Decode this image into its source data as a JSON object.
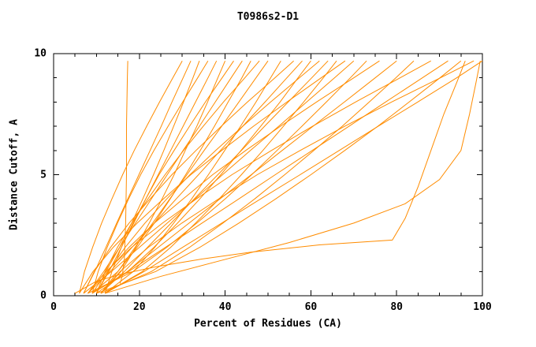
{
  "chart_data": {
    "type": "line",
    "title": "T0986s2-D1",
    "xlabel": "Percent of Residues (CA)",
    "ylabel": "Distance Cutoff, A",
    "xlim": [
      0,
      100
    ],
    "ylim": [
      0,
      10
    ],
    "x_ticks": [
      "0",
      "20",
      "40",
      "60",
      "80",
      "100"
    ],
    "y_ticks": [
      "0",
      "5",
      "10"
    ],
    "x_major_step": 20,
    "x_minor_step": 5,
    "y_major_step": 5,
    "y_minor_step": 1,
    "line_color": "#ff8c00",
    "axis_color": "#000000",
    "background_color": "#ffffff",
    "legend": "none",
    "grid": false,
    "series": [
      [
        [
          15.5,
          0.5
        ],
        [
          16,
          0.8
        ],
        [
          16.5,
          1.5
        ],
        [
          16.8,
          3
        ],
        [
          17,
          5
        ],
        [
          17,
          7
        ],
        [
          17.2,
          9
        ],
        [
          17.3,
          9.7
        ]
      ],
      [
        [
          5,
          0.1
        ],
        [
          7,
          0.3
        ],
        [
          10,
          0.6
        ],
        [
          16,
          0.9
        ],
        [
          24,
          1.2
        ],
        [
          34,
          1.5
        ],
        [
          46,
          1.8
        ],
        [
          62,
          2.1
        ],
        [
          79,
          2.3
        ],
        [
          82,
          3.2
        ],
        [
          85,
          4.5
        ],
        [
          88,
          6
        ],
        [
          91,
          7.5
        ],
        [
          94,
          8.8
        ],
        [
          96,
          9.7
        ]
      ],
      [
        [
          12,
          0.1
        ],
        [
          25,
          0.8
        ],
        [
          40,
          1.5
        ],
        [
          55,
          2.2
        ],
        [
          70,
          3
        ],
        [
          82,
          3.8
        ],
        [
          90,
          4.8
        ],
        [
          95,
          6
        ],
        [
          97,
          7.5
        ],
        [
          98.5,
          8.8
        ],
        [
          99.5,
          9.7
        ]
      ],
      [
        [
          6,
          0.1
        ],
        [
          7.2,
          1
        ],
        [
          9.1,
          2
        ],
        [
          11.2,
          3
        ],
        [
          13.6,
          4
        ],
        [
          16.1,
          5
        ],
        [
          18.8,
          6
        ],
        [
          21.7,
          7
        ],
        [
          24.7,
          8
        ],
        [
          27.8,
          9
        ],
        [
          30,
          9.7
        ]
      ],
      [
        [
          7,
          0.1
        ],
        [
          9.6,
          1
        ],
        [
          12.2,
          2
        ],
        [
          14.7,
          3
        ],
        [
          17.3,
          4
        ],
        [
          19.9,
          5
        ],
        [
          22.5,
          6
        ],
        [
          25.1,
          7
        ],
        [
          27.6,
          8
        ],
        [
          30.2,
          9
        ],
        [
          32,
          9.7
        ]
      ],
      [
        [
          8,
          0.1
        ],
        [
          12.2,
          1
        ],
        [
          15.4,
          2
        ],
        [
          18.2,
          3
        ],
        [
          20.8,
          4
        ],
        [
          23.3,
          5
        ],
        [
          25.7,
          6
        ],
        [
          28,
          7
        ],
        [
          30.3,
          8
        ],
        [
          32.5,
          9
        ],
        [
          34,
          9.7
        ]
      ],
      [
        [
          9,
          0.1
        ],
        [
          10.4,
          1
        ],
        [
          12.5,
          2
        ],
        [
          14.9,
          3
        ],
        [
          17.5,
          4
        ],
        [
          20.3,
          5
        ],
        [
          23.4,
          6
        ],
        [
          26.7,
          7
        ],
        [
          30.1,
          8
        ],
        [
          33.6,
          9
        ],
        [
          36,
          9.7
        ]
      ],
      [
        [
          10,
          0.1
        ],
        [
          12.9,
          1
        ],
        [
          15.8,
          2
        ],
        [
          18.7,
          3
        ],
        [
          21.5,
          4
        ],
        [
          24.4,
          5
        ],
        [
          27.3,
          6
        ],
        [
          30.2,
          7
        ],
        [
          33.1,
          8
        ],
        [
          36,
          9
        ],
        [
          38,
          9.7
        ]
      ],
      [
        [
          11,
          0.1
        ],
        [
          15.7,
          1
        ],
        [
          19.2,
          2
        ],
        [
          22.3,
          3
        ],
        [
          25.3,
          4
        ],
        [
          28.1,
          5
        ],
        [
          30.7,
          6
        ],
        [
          33.4,
          7
        ],
        [
          35.9,
          8
        ],
        [
          38.3,
          9
        ],
        [
          40,
          9.7
        ]
      ],
      [
        [
          12,
          0.1
        ],
        [
          13.6,
          1
        ],
        [
          15.8,
          2
        ],
        [
          18.5,
          3
        ],
        [
          21.5,
          4
        ],
        [
          24.6,
          5
        ],
        [
          28.1,
          6
        ],
        [
          31.7,
          7
        ],
        [
          35.4,
          8
        ],
        [
          39.3,
          9
        ],
        [
          42,
          9.7
        ]
      ],
      [
        [
          8,
          0.1
        ],
        [
          11.7,
          1
        ],
        [
          15.4,
          2
        ],
        [
          19.1,
          3
        ],
        [
          22.8,
          4
        ],
        [
          26.5,
          5
        ],
        [
          30.2,
          6
        ],
        [
          34,
          7
        ],
        [
          37.7,
          8
        ],
        [
          41.4,
          9
        ],
        [
          44,
          9.7
        ]
      ],
      [
        [
          9,
          0.1
        ],
        [
          15,
          1
        ],
        [
          19.5,
          2
        ],
        [
          23.5,
          3
        ],
        [
          27.2,
          4
        ],
        [
          30.8,
          5
        ],
        [
          34.2,
          6
        ],
        [
          37.5,
          7
        ],
        [
          40.7,
          8
        ],
        [
          43.9,
          9
        ],
        [
          46,
          9.7
        ]
      ],
      [
        [
          10,
          0.1
        ],
        [
          12,
          1
        ],
        [
          14.9,
          2
        ],
        [
          18.2,
          3
        ],
        [
          22,
          4
        ],
        [
          26,
          5
        ],
        [
          30.3,
          6
        ],
        [
          34.9,
          7
        ],
        [
          39.6,
          8
        ],
        [
          44.6,
          9
        ],
        [
          48,
          9.7
        ]
      ],
      [
        [
          11,
          0.1
        ],
        [
          15,
          1
        ],
        [
          19,
          2
        ],
        [
          23.1,
          3
        ],
        [
          27.1,
          4
        ],
        [
          31.1,
          5
        ],
        [
          35.1,
          6
        ],
        [
          39.2,
          7
        ],
        [
          43.2,
          8
        ],
        [
          47.2,
          9
        ],
        [
          50,
          9.7
        ]
      ],
      [
        [
          12,
          0.1
        ],
        [
          18.6,
          1
        ],
        [
          23.6,
          2
        ],
        [
          28,
          3
        ],
        [
          32.2,
          4
        ],
        [
          36.1,
          5
        ],
        [
          39.9,
          6
        ],
        [
          43.6,
          7
        ],
        [
          47.2,
          8
        ],
        [
          50.6,
          9
        ],
        [
          53,
          9.7
        ]
      ],
      [
        [
          7,
          0.1
        ],
        [
          9.5,
          1
        ],
        [
          13.3,
          2
        ],
        [
          17.6,
          3
        ],
        [
          22.5,
          4
        ],
        [
          27.6,
          5
        ],
        [
          33.2,
          6
        ],
        [
          39.1,
          7
        ],
        [
          45.2,
          8
        ],
        [
          51.6,
          9
        ],
        [
          56,
          9.7
        ]
      ],
      [
        [
          8,
          0.1
        ],
        [
          13.2,
          1
        ],
        [
          18.3,
          2
        ],
        [
          23.5,
          3
        ],
        [
          28.6,
          4
        ],
        [
          33.8,
          5
        ],
        [
          38.9,
          6
        ],
        [
          44.1,
          7
        ],
        [
          49.3,
          8
        ],
        [
          54.4,
          9
        ],
        [
          58,
          9.7
        ]
      ],
      [
        [
          9,
          0.1
        ],
        [
          17.3,
          1
        ],
        [
          23.4,
          2
        ],
        [
          28.9,
          3
        ],
        [
          34.1,
          4
        ],
        [
          39,
          5
        ],
        [
          43.7,
          6
        ],
        [
          48.3,
          7
        ],
        [
          52.8,
          8
        ],
        [
          57,
          9
        ],
        [
          60,
          9.7
        ]
      ],
      [
        [
          10,
          0.1
        ],
        [
          12.7,
          1
        ],
        [
          16.7,
          2
        ],
        [
          21.3,
          3
        ],
        [
          26.4,
          4
        ],
        [
          31.8,
          5
        ],
        [
          37.8,
          6
        ],
        [
          44.1,
          7
        ],
        [
          50.6,
          8
        ],
        [
          57.3,
          9
        ],
        [
          62,
          9.7
        ]
      ],
      [
        [
          11,
          0.1
        ],
        [
          16.5,
          1
        ],
        [
          21.9,
          2
        ],
        [
          27.4,
          3
        ],
        [
          32.8,
          4
        ],
        [
          38.3,
          5
        ],
        [
          43.8,
          6
        ],
        [
          49.2,
          7
        ],
        [
          54.7,
          8
        ],
        [
          60.2,
          9
        ],
        [
          64,
          9.7
        ]
      ],
      [
        [
          12,
          0.1
        ],
        [
          20.7,
          1
        ],
        [
          27.3,
          2
        ],
        [
          33.1,
          3
        ],
        [
          38.6,
          4
        ],
        [
          43.8,
          5
        ],
        [
          48.8,
          6
        ],
        [
          53.6,
          7
        ],
        [
          58.3,
          8
        ],
        [
          62.9,
          9
        ],
        [
          66,
          9.7
        ]
      ],
      [
        [
          6,
          0.1
        ],
        [
          9.2,
          1
        ],
        [
          13.9,
          2
        ],
        [
          19.5,
          3
        ],
        [
          25.6,
          4
        ],
        [
          32,
          5
        ],
        [
          39.2,
          6
        ],
        [
          46.6,
          7
        ],
        [
          54.4,
          8
        ],
        [
          62.4,
          9
        ],
        [
          68,
          9.7
        ]
      ],
      [
        [
          7,
          0.1
        ],
        [
          13.5,
          1
        ],
        [
          20,
          2
        ],
        [
          26.5,
          3
        ],
        [
          33,
          4
        ],
        [
          39.4,
          5
        ],
        [
          45.9,
          6
        ],
        [
          52.5,
          7
        ],
        [
          59,
          8
        ],
        [
          65.5,
          9
        ],
        [
          70,
          9.7
        ]
      ],
      [
        [
          8,
          0.1
        ],
        [
          18.5,
          1
        ],
        [
          26.4,
          2
        ],
        [
          33.4,
          3
        ],
        [
          40,
          4
        ],
        [
          46.2,
          5
        ],
        [
          52.1,
          6
        ],
        [
          57.9,
          7
        ],
        [
          63.6,
          8
        ],
        [
          69.2,
          9
        ],
        [
          73,
          9.7
        ]
      ],
      [
        [
          9,
          0.1
        ],
        [
          12.5,
          1
        ],
        [
          17.6,
          2
        ],
        [
          23.5,
          3
        ],
        [
          30.2,
          4
        ],
        [
          37.1,
          5
        ],
        [
          44.8,
          6
        ],
        [
          52.9,
          7
        ],
        [
          61.3,
          8
        ],
        [
          70,
          9
        ],
        [
          76,
          9.7
        ]
      ],
      [
        [
          10,
          0.1
        ],
        [
          17.2,
          1
        ],
        [
          24.4,
          2
        ],
        [
          31.6,
          3
        ],
        [
          38.8,
          4
        ],
        [
          46.1,
          5
        ],
        [
          53.3,
          6
        ],
        [
          60.5,
          7
        ],
        [
          67.8,
          8
        ],
        [
          75,
          9
        ],
        [
          80,
          9.7
        ]
      ],
      [
        [
          11,
          0.1
        ],
        [
          22.8,
          1
        ],
        [
          31.7,
          2
        ],
        [
          39.5,
          3
        ],
        [
          46.9,
          4
        ],
        [
          53.9,
          5
        ],
        [
          60.7,
          6
        ],
        [
          67.3,
          7
        ],
        [
          73.6,
          8
        ],
        [
          79.8,
          9
        ],
        [
          84,
          9.7
        ]
      ],
      [
        [
          8,
          0.1
        ],
        [
          12.2,
          1
        ],
        [
          18.2,
          2
        ],
        [
          25.4,
          3
        ],
        [
          33.3,
          4
        ],
        [
          41.6,
          5
        ],
        [
          50.8,
          6
        ],
        [
          60.4,
          7
        ],
        [
          70.4,
          8
        ],
        [
          80.8,
          9
        ],
        [
          88,
          9.7
        ]
      ],
      [
        [
          9,
          0.1
        ],
        [
          17.5,
          1
        ],
        [
          26.1,
          2
        ],
        [
          34.6,
          3
        ],
        [
          43.2,
          4
        ],
        [
          51.7,
          5
        ],
        [
          60.3,
          6
        ],
        [
          68.9,
          7
        ],
        [
          77.4,
          8
        ],
        [
          86,
          9
        ],
        [
          92,
          9.7
        ]
      ],
      [
        [
          10,
          0.1
        ],
        [
          23.8,
          1
        ],
        [
          34.1,
          2
        ],
        [
          43.2,
          3
        ],
        [
          51.8,
          4
        ],
        [
          60,
          5
        ],
        [
          67.9,
          6
        ],
        [
          75.6,
          7
        ],
        [
          82.9,
          8
        ],
        [
          90.1,
          9
        ],
        [
          95,
          9.7
        ]
      ],
      [
        [
          11,
          0.1
        ],
        [
          15.5,
          1
        ],
        [
          22.1,
          2
        ],
        [
          29.9,
          3
        ],
        [
          38.5,
          4
        ],
        [
          47.5,
          5
        ],
        [
          57.5,
          6
        ],
        [
          67.9,
          7
        ],
        [
          78.8,
          8
        ],
        [
          90.2,
          9
        ],
        [
          98,
          9.7
        ]
      ],
      [
        [
          12,
          0.1
        ],
        [
          21.1,
          1
        ],
        [
          30.1,
          2
        ],
        [
          39.2,
          3
        ],
        [
          48.3,
          4
        ],
        [
          57.5,
          5
        ],
        [
          66.6,
          6
        ],
        [
          75.7,
          7
        ],
        [
          84.9,
          8
        ],
        [
          94,
          9
        ],
        [
          100,
          9.7
        ]
      ]
    ]
  }
}
